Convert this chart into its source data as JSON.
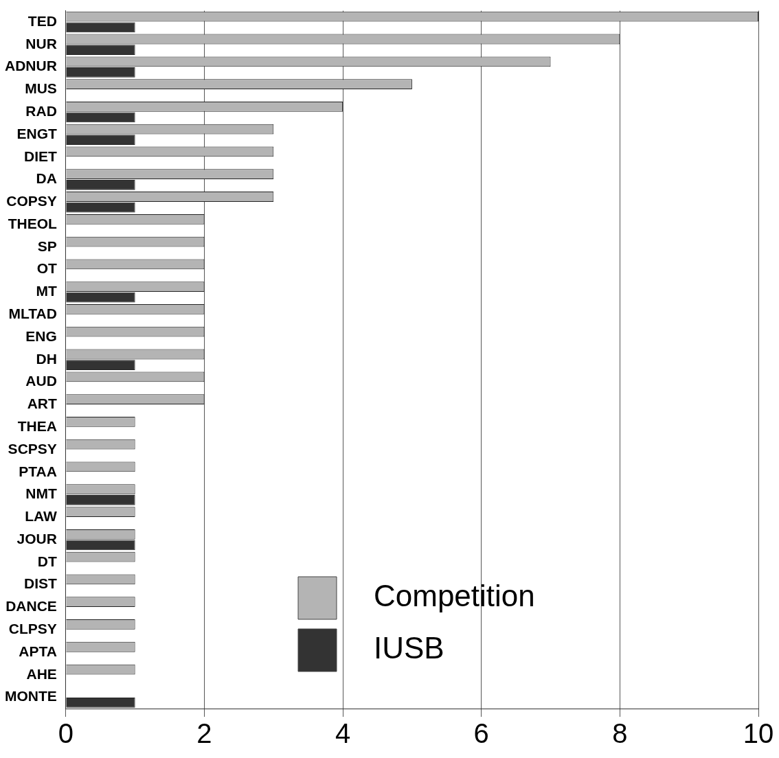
{
  "chart_data": {
    "type": "bar",
    "orientation": "horizontal",
    "categories": [
      "TED",
      "NUR",
      "ADNUR",
      "MUS",
      "RAD",
      "ENGT",
      "DIET",
      "DA",
      "COPSY",
      "THEOL",
      "SP",
      "OT",
      "MT",
      "MLTAD",
      "ENG",
      "DH",
      "AUD",
      "ART",
      "THEA",
      "SCPSY",
      "PTAA",
      "NMT",
      "LAW",
      "JOUR",
      "DT",
      "DIST",
      "DANCE",
      "CLPSY",
      "APTA",
      "AHE",
      "MONTE"
    ],
    "series": [
      {
        "name": "Competition",
        "color": "#b4b4b4",
        "values": [
          10,
          8,
          7,
          5,
          4,
          3,
          3,
          3,
          3,
          2,
          2,
          2,
          2,
          2,
          2,
          2,
          2,
          2,
          1,
          1,
          1,
          1,
          1,
          1,
          1,
          1,
          1,
          1,
          1,
          1,
          0
        ]
      },
      {
        "name": "IUSB",
        "color": "#333333",
        "values": [
          1,
          1,
          1,
          0,
          1,
          1,
          0,
          1,
          1,
          0,
          0,
          0,
          1,
          0,
          0,
          1,
          0,
          0,
          0,
          0,
          0,
          1,
          0,
          1,
          0,
          0,
          0,
          0,
          0,
          0,
          1
        ]
      }
    ],
    "xlim": [
      0,
      10
    ],
    "xticks": [
      0,
      2,
      4,
      6,
      8,
      10
    ],
    "grid": "x",
    "legend": "bottom right"
  }
}
